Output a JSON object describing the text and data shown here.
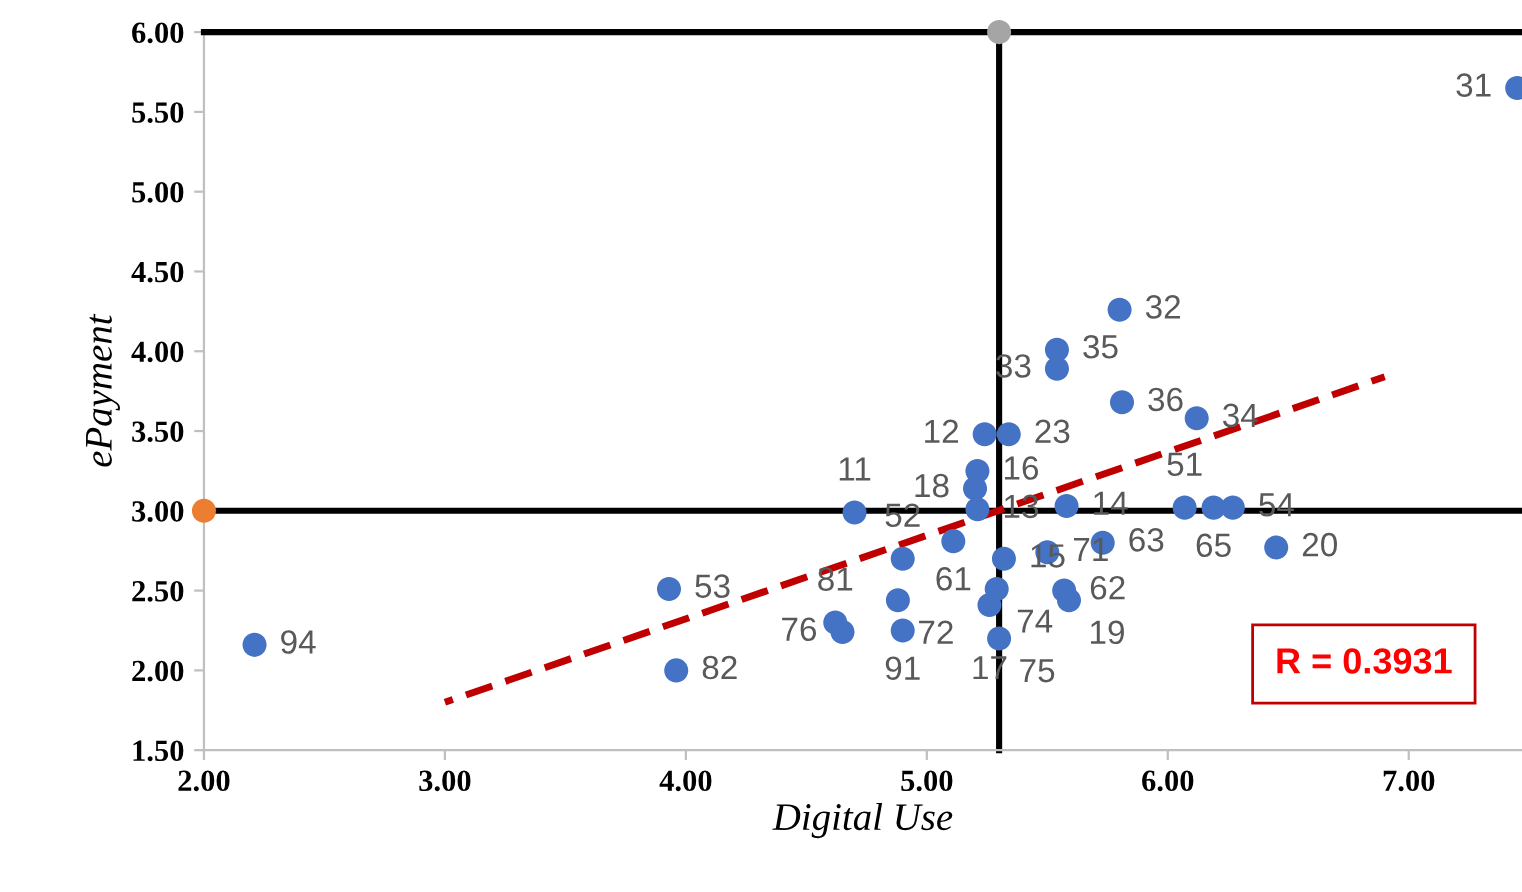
{
  "chart_data": {
    "type": "scatter",
    "xlabel": "Digital Use",
    "ylabel": "ePayment",
    "xlim": [
      2.0,
      7.47
    ],
    "ylim": [
      1.5,
      6.0
    ],
    "xticks": [
      {
        "value": 2,
        "label": "2.00"
      },
      {
        "value": 3,
        "label": "3.00"
      },
      {
        "value": 4,
        "label": "4.00"
      },
      {
        "value": 5,
        "label": "5.00"
      },
      {
        "value": 6,
        "label": "6.00"
      },
      {
        "value": 7,
        "label": "7.00"
      }
    ],
    "yticks": [
      {
        "value": 1.5,
        "label": "1.50"
      },
      {
        "value": 2,
        "label": "2.00"
      },
      {
        "value": 2.5,
        "label": "2.50"
      },
      {
        "value": 3,
        "label": "3.00"
      },
      {
        "value": 3.5,
        "label": "3.50"
      },
      {
        "value": 4,
        "label": "4.00"
      },
      {
        "value": 4.5,
        "label": "4.50"
      },
      {
        "value": 5,
        "label": "5.00"
      },
      {
        "value": 5.5,
        "label": "5.50"
      },
      {
        "value": 6,
        "label": "6.00"
      }
    ],
    "grid": false,
    "legend": false,
    "marker": "circle",
    "series": [
      {
        "color": "#4472c4",
        "x": [
          7.45,
          5.8,
          5.54,
          5.54,
          5.81,
          6.12,
          5.24,
          5.34,
          5.21,
          5.2,
          5.21,
          5.58,
          4.7,
          6.07,
          6.19,
          6.27,
          5.11,
          4.9,
          5.32,
          5.5,
          5.73,
          6.45,
          4.88,
          5.29,
          5.26,
          5.57,
          5.59,
          4.62,
          4.65,
          4.9,
          5.3,
          3.93,
          3.96,
          2.21
        ],
        "values": [
          5.65,
          4.26,
          4.01,
          3.89,
          3.68,
          3.58,
          3.48,
          3.48,
          3.25,
          3.14,
          3.01,
          3.03,
          2.99,
          3.02,
          3.02,
          3.02,
          2.81,
          2.7,
          2.7,
          2.74,
          2.8,
          2.77,
          2.44,
          2.51,
          2.41,
          2.5,
          2.44,
          2.3,
          2.24,
          2.25,
          2.2,
          2.51,
          2.0,
          2.16
        ]
      },
      {
        "color": "#ed7d31",
        "x": [
          2.0
        ],
        "values": [
          3.0
        ]
      },
      {
        "color": "#a5a5a5",
        "x": [
          5.3
        ],
        "values": [
          6.0
        ]
      },
      {
        "type": "line",
        "color": "#c00000",
        "line_style": "dashed",
        "marker": "none",
        "x": [
          3.0,
          6.9
        ],
        "values": [
          1.8,
          3.84
        ]
      }
    ],
    "ref_lines": [
      {
        "axis": "x",
        "value": 5.3,
        "color": "#000000"
      },
      {
        "axis": "y",
        "value": 3.0,
        "color": "#000000"
      }
    ],
    "annotations": [
      {
        "text": "31",
        "x": 7.45,
        "y": 5.65
      },
      {
        "text": "32",
        "x": 5.8,
        "y": 4.26
      },
      {
        "text": "35",
        "x": 5.54,
        "y": 4.01
      },
      {
        "text": "33",
        "x": 5.54,
        "y": 3.89
      },
      {
        "text": "36",
        "x": 5.81,
        "y": 3.68
      },
      {
        "text": "34",
        "x": 6.12,
        "y": 3.58
      },
      {
        "text": "12",
        "x": 5.24,
        "y": 3.48
      },
      {
        "text": "23",
        "x": 5.34,
        "y": 3.48
      },
      {
        "text": "16",
        "x": 5.21,
        "y": 3.25
      },
      {
        "text": "18",
        "x": 5.2,
        "y": 3.14
      },
      {
        "text": "13",
        "x": 5.21,
        "y": 3.01
      },
      {
        "text": "14",
        "x": 5.58,
        "y": 3.03
      },
      {
        "text": "11",
        "x": 4.7,
        "y": 2.99
      },
      {
        "text": "51",
        "x": 6.07,
        "y": 3.02
      },
      {
        "text": "65",
        "x": 6.19,
        "y": 3.02
      },
      {
        "text": "54",
        "x": 6.27,
        "y": 3.02
      },
      {
        "text": "61",
        "x": 5.11,
        "y": 2.81
      },
      {
        "text": "52",
        "x": 4.9,
        "y": 2.7
      },
      {
        "text": "15",
        "x": 5.32,
        "y": 2.7
      },
      {
        "text": "71",
        "x": 5.5,
        "y": 2.74
      },
      {
        "text": "63",
        "x": 5.73,
        "y": 2.8
      },
      {
        "text": "20",
        "x": 6.45,
        "y": 2.77
      },
      {
        "text": "72",
        "x": 4.88,
        "y": 2.44
      },
      {
        "text": "74",
        "x": 5.29,
        "y": 2.51
      },
      {
        "text": "17",
        "x": 5.26,
        "y": 2.41
      },
      {
        "text": "62",
        "x": 5.57,
        "y": 2.5
      },
      {
        "text": "19",
        "x": 5.59,
        "y": 2.44
      },
      {
        "text": "81",
        "x": 4.62,
        "y": 2.3
      },
      {
        "text": "76",
        "x": 4.65,
        "y": 2.24
      },
      {
        "text": "91",
        "x": 4.9,
        "y": 2.25
      },
      {
        "text": "75",
        "x": 5.3,
        "y": 2.2
      },
      {
        "text": "53",
        "x": 3.93,
        "y": 2.51
      },
      {
        "text": "82",
        "x": 3.96,
        "y": 2.0
      },
      {
        "text": "94",
        "x": 2.21,
        "y": 2.16
      },
      "R = 0.3931"
    ]
  }
}
